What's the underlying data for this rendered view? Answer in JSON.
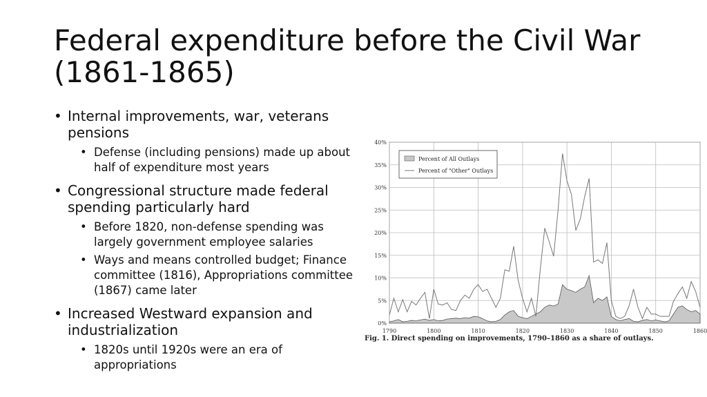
{
  "slide": {
    "title": "Federal expenditure before the Civil War (1861-1865)"
  },
  "bullets": [
    {
      "text": "Internal improvements, war, veterans pensions",
      "sub": [
        "Defense (including pensions) made up about half of expenditure most years"
      ]
    },
    {
      "text": "Congressional structure made federal spending particularly hard",
      "sub": [
        "Before 1820, non-defense spending was largely government employee salaries",
        "Ways and means controlled budget; Finance committee (1816), Appropriations committee (1867) came later"
      ]
    },
    {
      "text": "Increased Westward expansion and industrialization",
      "sub": [
        "1820s until 1920s were an era of appropriations"
      ]
    }
  ],
  "chart_data": {
    "type": "area",
    "caption": "Fig. 1. Direct spending on improvements, 1790–1860 as a share of outlays.",
    "xlim": [
      1790,
      1860
    ],
    "ylim": [
      0,
      40
    ],
    "x_ticks": [
      "1790",
      "1800",
      "1810",
      "1820",
      "1830",
      "1840",
      "1850",
      "1860"
    ],
    "y_ticks": [
      "0%",
      "5%",
      "10%",
      "15%",
      "20%",
      "25%",
      "30%",
      "35%",
      "40%"
    ],
    "grid": true,
    "legend_position": "top-left",
    "series": [
      {
        "name": "Percent of All Outlays",
        "style": "filled-area",
        "x": [
          1790,
          1791,
          1792,
          1793,
          1794,
          1795,
          1796,
          1797,
          1798,
          1799,
          1800,
          1801,
          1802,
          1803,
          1804,
          1805,
          1806,
          1807,
          1808,
          1809,
          1810,
          1811,
          1812,
          1813,
          1814,
          1815,
          1816,
          1817,
          1818,
          1819,
          1820,
          1821,
          1822,
          1823,
          1824,
          1825,
          1826,
          1827,
          1828,
          1829,
          1830,
          1831,
          1832,
          1833,
          1834,
          1835,
          1836,
          1837,
          1838,
          1839,
          1840,
          1841,
          1842,
          1843,
          1844,
          1845,
          1846,
          1847,
          1848,
          1849,
          1850,
          1851,
          1852,
          1853,
          1854,
          1855,
          1856,
          1857,
          1858,
          1859,
          1860
        ],
        "values": [
          0.3,
          0.5,
          0.8,
          0.3,
          0.4,
          0.6,
          0.5,
          0.7,
          0.9,
          0.6,
          0.8,
          0.5,
          0.6,
          0.9,
          1.0,
          1.1,
          1.0,
          1.2,
          1.1,
          1.5,
          1.4,
          1.0,
          0.5,
          0.3,
          0.4,
          0.8,
          1.8,
          2.5,
          2.8,
          1.5,
          1.2,
          1.0,
          1.5,
          2.0,
          2.5,
          3.5,
          4.0,
          3.8,
          4.2,
          8.5,
          7.5,
          7.2,
          6.8,
          7.5,
          8.0,
          10.5,
          4.5,
          5.5,
          5.0,
          5.8,
          1.5,
          0.8,
          0.5,
          0.8,
          1.0,
          0.4,
          0.3,
          0.6,
          0.8,
          0.5,
          0.7,
          0.5,
          0.3,
          0.5,
          2.0,
          3.5,
          3.8,
          3.0,
          2.5,
          2.8,
          2.0
        ]
      },
      {
        "name": "Percent of \"Other\" Outlays",
        "style": "line",
        "x": [
          1790,
          1791,
          1792,
          1793,
          1794,
          1795,
          1796,
          1797,
          1798,
          1799,
          1800,
          1801,
          1802,
          1803,
          1804,
          1805,
          1806,
          1807,
          1808,
          1809,
          1810,
          1811,
          1812,
          1813,
          1814,
          1815,
          1816,
          1817,
          1818,
          1819,
          1820,
          1821,
          1822,
          1823,
          1824,
          1825,
          1826,
          1827,
          1828,
          1829,
          1830,
          1831,
          1832,
          1833,
          1834,
          1835,
          1836,
          1837,
          1838,
          1839,
          1840,
          1841,
          1842,
          1843,
          1844,
          1845,
          1846,
          1847,
          1848,
          1849,
          1850,
          1851,
          1852,
          1853,
          1854,
          1855,
          1856,
          1857,
          1858,
          1859,
          1860
        ],
        "values": [
          1.8,
          5.5,
          2.5,
          5.2,
          2.5,
          4.8,
          4.0,
          5.5,
          6.8,
          1.0,
          7.5,
          4.2,
          4.0,
          4.5,
          3.0,
          2.8,
          5.0,
          6.2,
          5.5,
          7.5,
          8.5,
          7.0,
          7.5,
          5.5,
          3.5,
          5.5,
          11.8,
          11.5,
          17.0,
          9.5,
          5.5,
          2.5,
          5.5,
          1.5,
          12.0,
          21.0,
          18.0,
          14.8,
          25.0,
          37.5,
          31.5,
          28.5,
          20.5,
          23.0,
          28.0,
          32.0,
          13.5,
          14.0,
          13.2,
          17.8,
          5.0,
          1.5,
          1.0,
          1.5,
          3.8,
          7.5,
          3.5,
          1.0,
          3.5,
          2.0,
          2.0,
          1.5,
          1.5,
          1.5,
          4.8,
          6.5,
          8.0,
          5.5,
          9.2,
          7.0,
          3.5
        ]
      }
    ]
  }
}
